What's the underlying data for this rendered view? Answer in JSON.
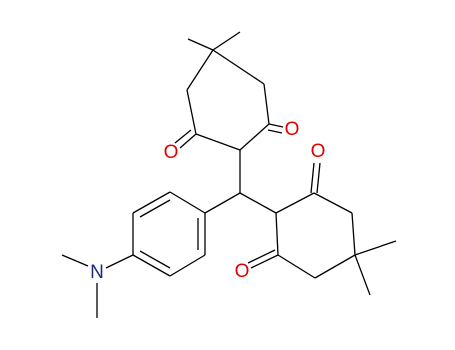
{
  "atoms": [
    {
      "label": "O"
    },
    {
      "label": "O"
    },
    {
      "label": "O"
    },
    {
      "label": "O"
    },
    {
      "label": "N"
    }
  ]
}
